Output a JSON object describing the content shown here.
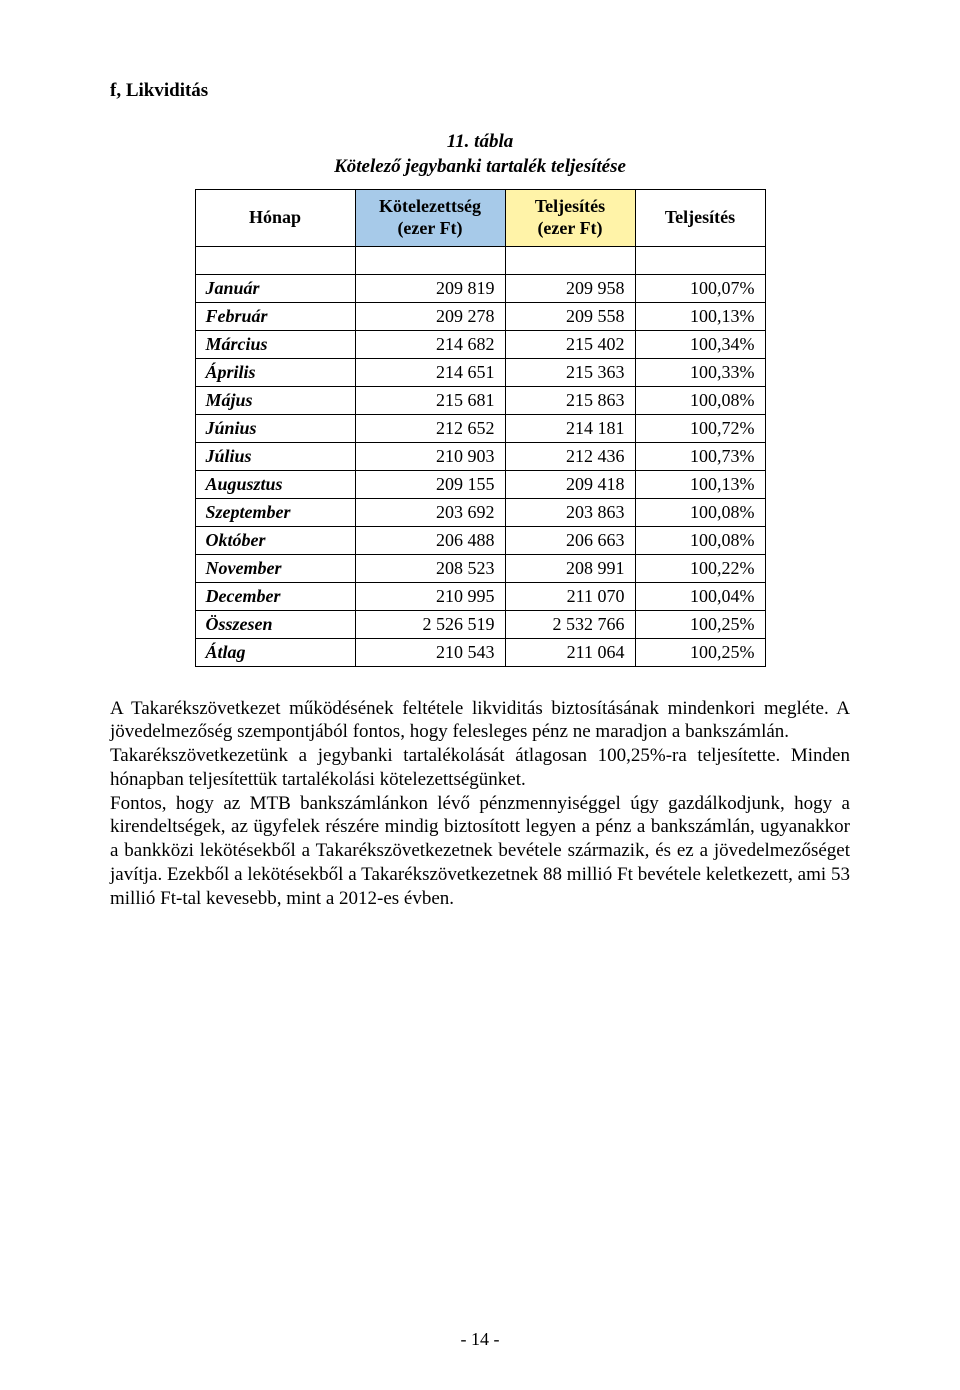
{
  "section_title": "f,  Likviditás",
  "table_title_line1": "11. tábla",
  "table_title_line2": "Kötelező jegybanki tartalék teljesítése",
  "headers": {
    "month": "Hónap",
    "kotelezettseg_l1": "Kötelezettség",
    "kotelezettseg_l2": "(ezer Ft)",
    "teljesites1_l1": "Teljesítés",
    "teljesites1_l2": "(ezer Ft)",
    "teljesites2": "Teljesítés"
  },
  "header_bg": {
    "month": "#ffffff",
    "kot": "#a7cae9",
    "telj1": "#fff3a8",
    "telj2": "#ffffff"
  },
  "rows": [
    {
      "label": "Január",
      "kot": "209 819",
      "telj": "209 958",
      "pct": "100,07%"
    },
    {
      "label": "Február",
      "kot": "209 278",
      "telj": "209 558",
      "pct": "100,13%"
    },
    {
      "label": "Március",
      "kot": "214 682",
      "telj": "215 402",
      "pct": "100,34%"
    },
    {
      "label": "Április",
      "kot": "214 651",
      "telj": "215 363",
      "pct": "100,33%"
    },
    {
      "label": "Május",
      "kot": "215 681",
      "telj": "215 863",
      "pct": "100,08%"
    },
    {
      "label": "Június",
      "kot": "212 652",
      "telj": "214 181",
      "pct": "100,72%"
    },
    {
      "label": "Július",
      "kot": "210 903",
      "telj": "212 436",
      "pct": "100,73%"
    },
    {
      "label": "Augusztus",
      "kot": "209 155",
      "telj": "209 418",
      "pct": "100,13%"
    },
    {
      "label": "Szeptember",
      "kot": "203 692",
      "telj": "203 863",
      "pct": "100,08%"
    },
    {
      "label": "Október",
      "kot": "206 488",
      "telj": "206 663",
      "pct": "100,08%"
    },
    {
      "label": "November",
      "kot": "208 523",
      "telj": "208 991",
      "pct": "100,22%"
    },
    {
      "label": "December",
      "kot": "210 995",
      "telj": "211 070",
      "pct": "100,04%"
    },
    {
      "label": "Összesen",
      "kot": "2 526 519",
      "telj": "2 532 766",
      "pct": "100,25%"
    },
    {
      "label": "Átlag",
      "kot": "210 543",
      "telj": "211 064",
      "pct": "100,25%"
    }
  ],
  "paragraphs": {
    "p1": "A Takarékszövetkezet működésének feltétele likviditás biztosításának mindenkori megléte. A jövedelmezőség szempontjából fontos, hogy felesleges pénz ne maradjon a bankszámlán.",
    "p2": "Takarékszövetkezetünk a jegybanki tartalékolását átlagosan 100,25%-ra teljesítette. Minden hónapban teljesítettük tartalékolási kötelezettségünket.",
    "p3": "Fontos, hogy az MTB bankszámlánkon lévő pénzmennyiséggel úgy gazdálkodjunk, hogy a kirendeltségek, az ügyfelek részére mindig biztosított legyen a pénz a bankszámlán, ugyanakkor a bankközi lekötésekből a Takarékszövetkezetnek bevétele származik, és ez a jövedelmezőséget javítja. Ezekből a lekötésekből a Takarékszövetkezetnek 88 millió Ft bevétele keletkezett, ami 53 millió Ft-tal kevesebb, mint a 2012-es évben."
  },
  "page_number": "- 14 -",
  "col_widths": {
    "label": 160,
    "kot": 150,
    "telj": 130,
    "pct": 130
  }
}
